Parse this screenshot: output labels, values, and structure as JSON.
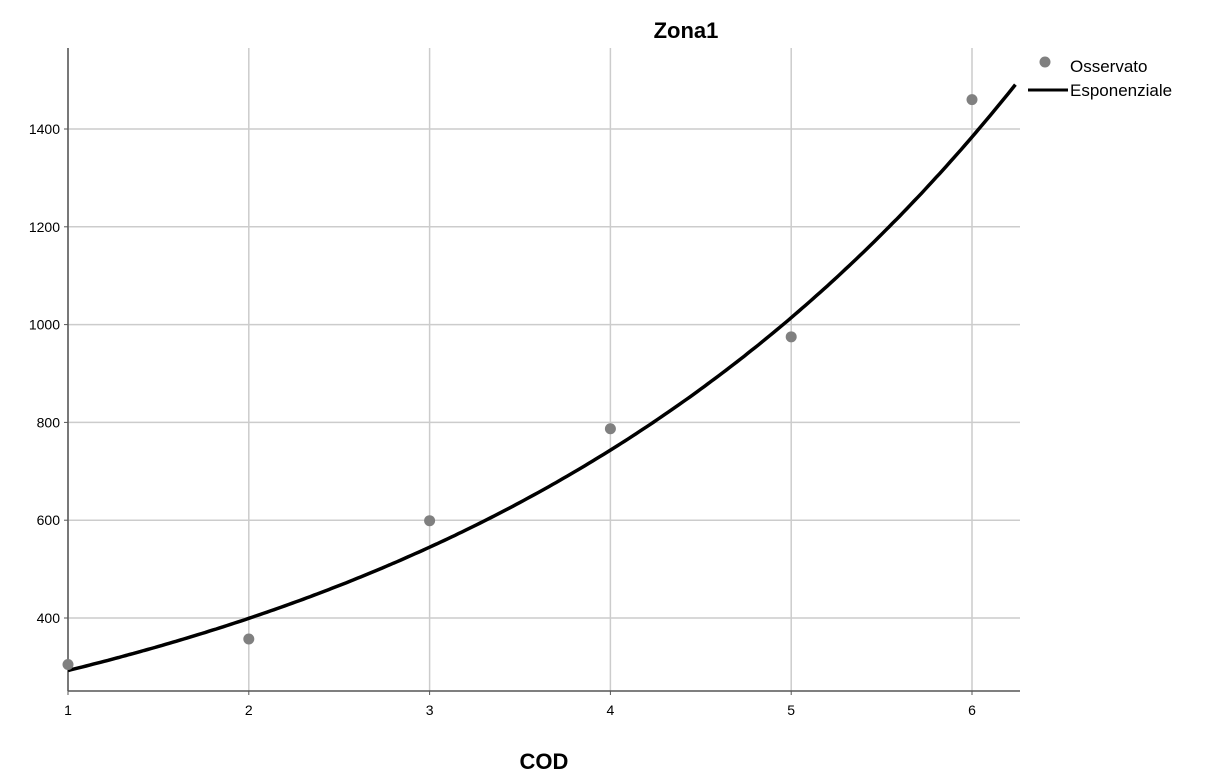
{
  "chart_data": {
    "type": "scatter",
    "title": "Zona1",
    "xlabel": "COD",
    "ylabel": "",
    "xlim": [
      1,
      6.25
    ],
    "ylim": [
      250,
      1560
    ],
    "x_ticks": [
      1,
      2,
      3,
      4,
      5,
      6
    ],
    "y_ticks": [
      400,
      600,
      800,
      1000,
      1200,
      1400
    ],
    "grid": true,
    "legend_position": "top-right",
    "series": [
      {
        "name": "Osservato",
        "kind": "points",
        "color": "#808080",
        "x": [
          1,
          2,
          3,
          4,
          5,
          6
        ],
        "y": [
          305,
          357,
          599,
          787,
          975,
          1460
        ]
      },
      {
        "name": "Esponenziale",
        "kind": "curve",
        "color": "#000000",
        "model": "y = a * exp(b * x)",
        "a": 214.5,
        "b": 0.3107
      }
    ]
  }
}
